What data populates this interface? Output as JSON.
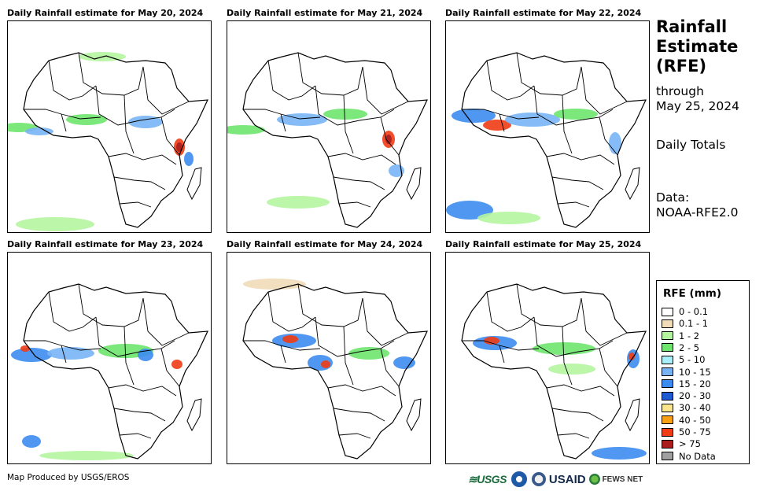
{
  "panels": [
    {
      "title": "Daily Rainfall estimate for May 20, 2024"
    },
    {
      "title": "Daily Rainfall estimate for May 21, 2024"
    },
    {
      "title": "Daily Rainfall estimate for May 22, 2024"
    },
    {
      "title": "Daily Rainfall estimate for May 23, 2024"
    },
    {
      "title": "Daily Rainfall estimate for May 24, 2024"
    },
    {
      "title": "Daily Rainfall estimate for May 25, 2024"
    }
  ],
  "side": {
    "title_lines": [
      "Rainfall",
      "Estimate",
      "(RFE)"
    ],
    "through_label": "through",
    "through_date": "May 25, 2024",
    "totals_label": "Daily Totals",
    "data_label": "Data:",
    "data_source": "NOAA-RFE2.0"
  },
  "legend": {
    "title": "RFE (mm)",
    "items": [
      {
        "label": "0 - 0.1",
        "color": "#ffffff"
      },
      {
        "label": "0.1 - 1",
        "color": "#f0dcb9"
      },
      {
        "label": "1 - 2",
        "color": "#b4f5a0"
      },
      {
        "label": "2 - 5",
        "color": "#6ee66e"
      },
      {
        "label": "5 - 10",
        "color": "#aaf0fa"
      },
      {
        "label": "10 - 15",
        "color": "#78b4f5"
      },
      {
        "label": "15 - 20",
        "color": "#3c8cf0"
      },
      {
        "label": "20 - 30",
        "color": "#1e5ad2"
      },
      {
        "label": "30 - 40",
        "color": "#fae68c"
      },
      {
        "label": "40 - 50",
        "color": "#faa014"
      },
      {
        "label": "50 - 75",
        "color": "#f03c14"
      },
      {
        "label": "> 75",
        "color": "#aa1e1e"
      },
      {
        "label": "No Data",
        "color": "#a0a0a0"
      }
    ]
  },
  "footer": {
    "credit": "Map Produced by USGS/EROS",
    "logo_usgs": "≋USGS",
    "logo_usaid": "USAID",
    "logo_fews": "FEWS NET"
  }
}
